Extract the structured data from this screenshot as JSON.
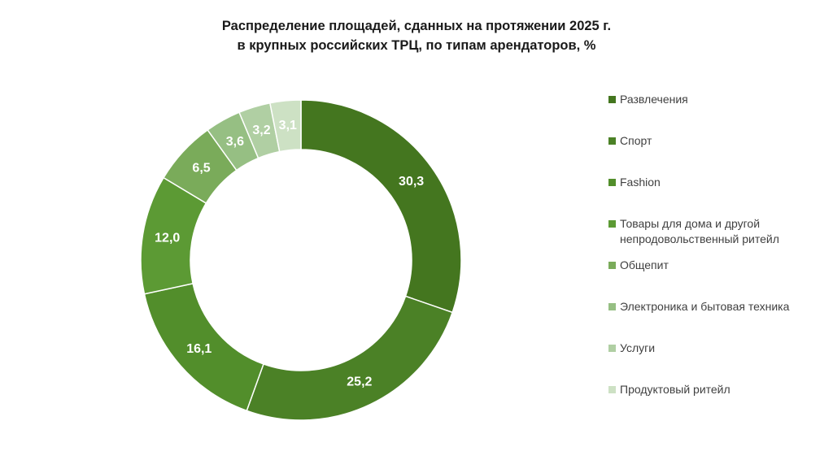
{
  "chart_data": {
    "type": "pie",
    "donut": true,
    "title_lines": [
      "Распределение площадей, сданных на протяжении 2025 г.",
      "в крупных российских ТРЦ, по типам арендаторов, %"
    ],
    "legend_position": "right",
    "slices": [
      {
        "label": "Развлечения",
        "value": 30.3,
        "value_text": "30,3",
        "color": "#44761f"
      },
      {
        "label": "Спорт",
        "value": 25.2,
        "value_text": "25,2",
        "color": "#4b8126"
      },
      {
        "label": "Fashion",
        "value": 16.1,
        "value_text": "16,1",
        "color": "#528e2b"
      },
      {
        "label": "Товары для дома и другой непродовольственный ритейл",
        "value": 12.0,
        "value_text": "12,0",
        "color": "#5c9a34"
      },
      {
        "label": "Общепит",
        "value": 6.5,
        "value_text": "6,5",
        "color": "#7aab5a"
      },
      {
        "label": "Электроника и бытовая техника",
        "value": 3.6,
        "value_text": "3,6",
        "color": "#96bf83"
      },
      {
        "label": "Услуги",
        "value": 3.2,
        "value_text": "3,2",
        "color": "#b0cfa3"
      },
      {
        "label": "Продуктовый ритейл",
        "value": 3.1,
        "value_text": "3,1",
        "color": "#cde1c4"
      }
    ]
  }
}
